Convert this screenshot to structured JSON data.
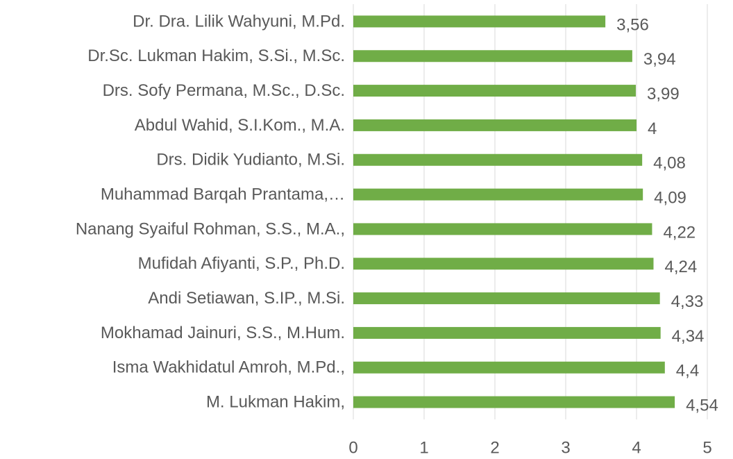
{
  "chart_data": {
    "type": "barh",
    "categories": [
      "Dr. Dra. Lilik Wahyuni, M.Pd.",
      "Dr.Sc. Lukman Hakim, S.Si., M.Sc.",
      "Drs. Sofy Permana, M.Sc., D.Sc.",
      "Abdul Wahid, S.I.Kom., M.A.",
      "Drs. Didik Yudianto, M.Si.",
      "Muhammad Barqah Prantama,…",
      "Nanang Syaiful Rohman, S.S., M.A.,",
      "Mufidah Afiyanti, S.P., Ph.D.",
      "Andi Setiawan, S.IP., M.Si.",
      "Mokhamad Jainuri, S.S., M.Hum.",
      "Isma Wakhidatul Amroh, M.Pd.,",
      "M. Lukman Hakim,"
    ],
    "values": [
      3.56,
      3.94,
      3.99,
      4,
      4.08,
      4.09,
      4.22,
      4.24,
      4.33,
      4.34,
      4.4,
      4.54
    ],
    "value_labels": [
      "3,56",
      "3,94",
      "3,99",
      "4",
      "4,08",
      "4,09",
      "4,22",
      "4,24",
      "4,33",
      "4,34",
      "4,4",
      "4,54"
    ],
    "color": "#70ad47",
    "xlim": [
      0,
      5
    ],
    "xticks": [
      0,
      1,
      2,
      3,
      4,
      5
    ],
    "grid": true
  }
}
